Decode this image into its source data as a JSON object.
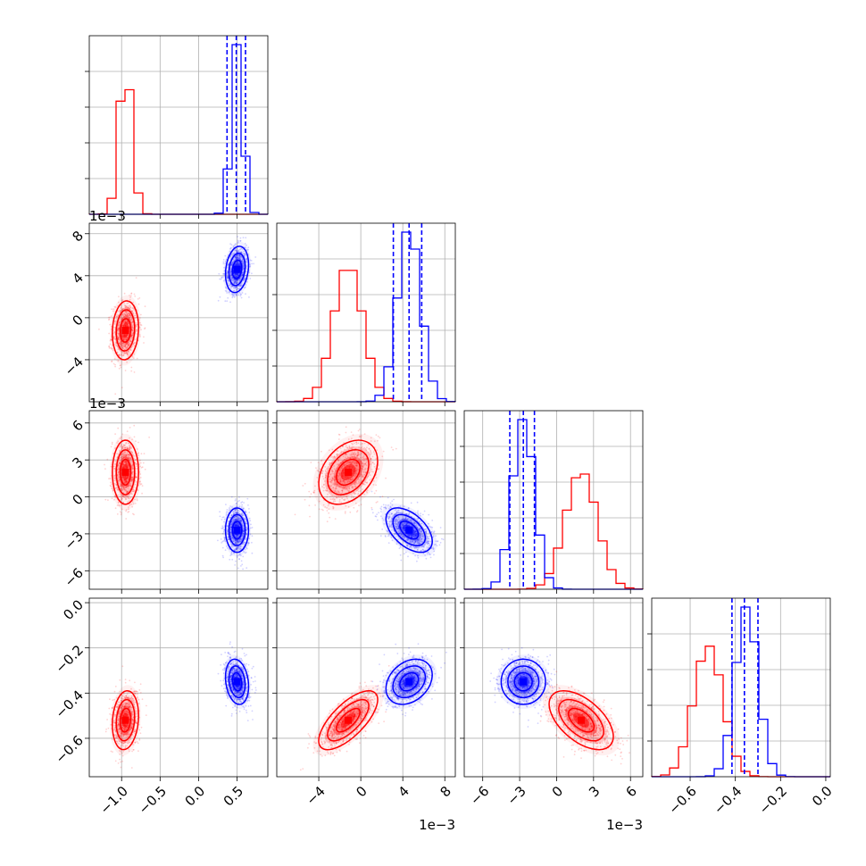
{
  "colors": {
    "red": "#ff0000",
    "blue": "#0000ff",
    "grid": "#b0b0b0"
  },
  "chart_data": {
    "type": "corner",
    "grid": true,
    "legend": "none",
    "parameters": [
      {
        "range": [
          -1.42,
          0.9
        ],
        "ticks": [
          -1.0,
          -0.5,
          0.0,
          0.5
        ],
        "tick_labels": [
          "−1.0",
          "−0.5",
          "0.0",
          "0.5"
        ],
        "offset_label": ""
      },
      {
        "range": [
          -8.0,
          9.0
        ],
        "ticks": [
          -4,
          0,
          4,
          8
        ],
        "tick_labels": [
          "−4",
          "0",
          "4",
          "8"
        ],
        "offset_label": "1e−3"
      },
      {
        "range": [
          -7.5,
          7.0
        ],
        "ticks": [
          -6,
          -3,
          0,
          3,
          6
        ],
        "tick_labels": [
          "−6",
          "−3",
          "0",
          "3",
          "6"
        ],
        "offset_label": "1e−3"
      },
      {
        "range": [
          -0.77,
          0.02
        ],
        "ticks": [
          -0.6,
          -0.4,
          -0.2,
          0.0
        ],
        "tick_labels": [
          "−0.6",
          "−0.4",
          "−0.2",
          "0.0"
        ],
        "offset_label": ""
      }
    ],
    "groups": [
      {
        "color": "red",
        "mean": [
          -0.95,
          -1.2,
          2.0,
          -0.52
        ],
        "sd": [
          0.085,
          1.4,
          1.3,
          0.065
        ],
        "corr": {
          "1-0": 0.1,
          "2-0": 0.0,
          "2-1": 0.35,
          "3-0": 0.15,
          "3-1": 0.7,
          "3-2": -0.55
        },
        "quantile_lines": []
      },
      {
        "color": "blue",
        "mean": [
          0.5,
          4.6,
          -2.7,
          -0.35
        ],
        "sd": [
          0.075,
          1.1,
          0.9,
          0.05
        ],
        "corr": {
          "1-0": 0.2,
          "2-0": 0.0,
          "2-1": -0.5,
          "3-0": -0.2,
          "3-1": 0.3,
          "3-2": 0.0
        },
        "quantile_lines": [
          [
            0.37,
            0.49,
            0.61
          ],
          [
            3.1,
            4.6,
            5.8
          ],
          [
            -3.8,
            -2.7,
            -1.8
          ],
          [
            -0.415,
            -0.36,
            -0.3
          ]
        ]
      }
    ]
  }
}
